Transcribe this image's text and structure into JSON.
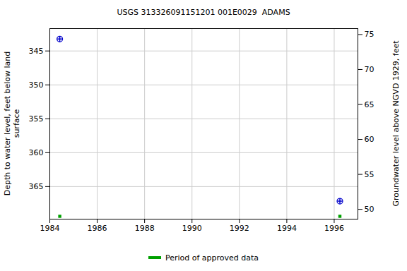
{
  "chart_data": {
    "type": "scatter",
    "title": "USGS 313326091151201 001E0029  ADAMS",
    "x": [
      1984.42,
      1996.24
    ],
    "values": [
      343.24,
      367.15
    ],
    "color": "#0000cc",
    "marker": "circle",
    "xlim": [
      1984,
      1997
    ],
    "xticks": [
      1984,
      1986,
      1988,
      1990,
      1992,
      1994,
      1996
    ],
    "ylim": [
      341.7,
      369.8
    ],
    "yticks": [
      345,
      350,
      355,
      360,
      365
    ],
    "ylabel": "Depth to water level, feet below land\nsurface",
    "y2lim": [
      48.6,
      75.85
    ],
    "y2ticks": [
      50,
      55,
      60,
      65,
      70,
      75
    ],
    "y2label": "Groundwater level above NGVD 1929, feet",
    "grid": true,
    "legend": "bottom",
    "approved": {
      "name": "Period of approved data",
      "color": "#00a000",
      "x": [
        1984.42,
        1996.24
      ]
    }
  }
}
